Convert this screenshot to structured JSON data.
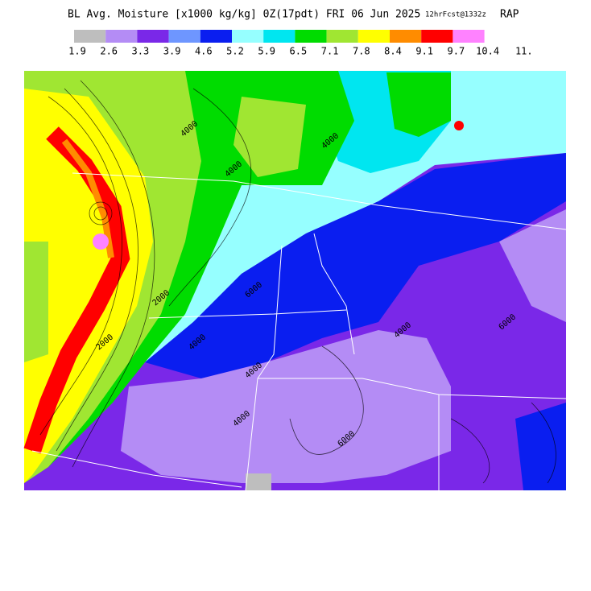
{
  "header": {
    "title": "BL Avg. Moisture [x1000 kg/kg] 0Z(17pdt) FRI 06 Jun 2025",
    "forecast": "12hrFcst@1332z",
    "model": "RAP"
  },
  "colorbar": {
    "colors": [
      "#bebebe",
      "#b48cf5",
      "#7a28e8",
      "#6e96ff",
      "#0a1ef0",
      "#96ffff",
      "#00e6f0",
      "#00dc00",
      "#a0e632",
      "#ffff00",
      "#ff8c00",
      "#ff0000",
      "#ff82ff"
    ],
    "labels": [
      "1.9",
      "2.6",
      "3.3",
      "3.9",
      "4.6",
      "5.2",
      "5.9",
      "6.5",
      "7.1",
      "7.8",
      "8.4",
      "9.1",
      "9.7",
      "10.4",
      "11."
    ]
  },
  "map": {
    "contour_labels": [
      "4000",
      "4000",
      "2000",
      "2000",
      "4000",
      "6000",
      "4000",
      "4000",
      "6000",
      "4000",
      "6000",
      "4000"
    ]
  }
}
